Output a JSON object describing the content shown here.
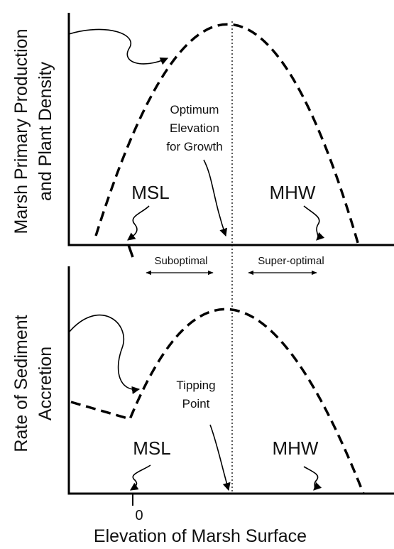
{
  "top_panel": {
    "y_label": [
      "Marsh Primary Production",
      "and Plant Density"
    ],
    "annotation": [
      "Optimum",
      "Elevation",
      "for Growth"
    ],
    "msl": "MSL",
    "mhw": "MHW"
  },
  "zones": {
    "left": "Suboptimal",
    "right": "Super-optimal"
  },
  "bottom_panel": {
    "y_label": [
      "Rate of Sediment",
      "Accretion"
    ],
    "annotation": [
      "Tipping",
      "Point"
    ],
    "msl": "MSL",
    "mhw": "MHW",
    "x_tick": "0",
    "x_label": "Elevation of Marsh Surface"
  }
}
